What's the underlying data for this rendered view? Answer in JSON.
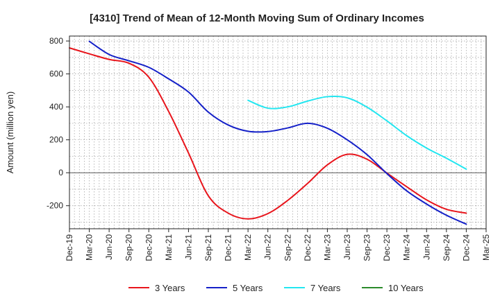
{
  "chart_data": {
    "type": "line",
    "title": "[4310]  Trend of Mean of 12-Month Moving Sum of Ordinary Incomes",
    "xlabel": "",
    "ylabel": "Amount (million yen)",
    "ylim": [
      -340,
      830
    ],
    "yticks": [
      800,
      600,
      400,
      200,
      0,
      -200
    ],
    "ytick_labels": [
      "800",
      "600",
      "400",
      "200",
      "0",
      "-200"
    ],
    "grid": true,
    "legend_position": "bottom",
    "x_categories": [
      "Dec-19",
      "Mar-20",
      "Jun-20",
      "Sep-20",
      "Dec-20",
      "Mar-21",
      "Jun-21",
      "Sep-21",
      "Dec-21",
      "Mar-22",
      "Jun-22",
      "Sep-22",
      "Dec-22",
      "Mar-23",
      "Jun-23",
      "Sep-23",
      "Dec-23",
      "Mar-24",
      "Jun-24",
      "Sep-24",
      "Dec-24",
      "Mar-25"
    ],
    "series": [
      {
        "name": "3 Years",
        "color": "#e8141b",
        "values": [
          758,
          722,
          688,
          665,
          580,
          372,
          120,
          -140,
          -245,
          -280,
          -248,
          -168,
          -65,
          48,
          112,
          82,
          -2,
          -85,
          -165,
          -222,
          -245,
          null
        ]
      },
      {
        "name": "5 Years",
        "color": "#1420c8",
        "values": [
          null,
          798,
          718,
          680,
          640,
          570,
          490,
          368,
          290,
          252,
          250,
          272,
          300,
          270,
          200,
          110,
          -5,
          -110,
          -190,
          -258,
          -312,
          null
        ]
      },
      {
        "name": "7 Years",
        "color": "#22e6f0",
        "values": [
          null,
          null,
          null,
          null,
          null,
          null,
          null,
          null,
          null,
          440,
          392,
          400,
          435,
          462,
          455,
          398,
          315,
          225,
          150,
          88,
          22,
          null
        ]
      },
      {
        "name": "10 Years",
        "color": "#2a8a2a",
        "values": [
          null,
          null,
          null,
          null,
          null,
          null,
          null,
          null,
          null,
          null,
          null,
          null,
          null,
          null,
          null,
          null,
          null,
          null,
          null,
          null,
          null,
          null
        ]
      }
    ]
  }
}
